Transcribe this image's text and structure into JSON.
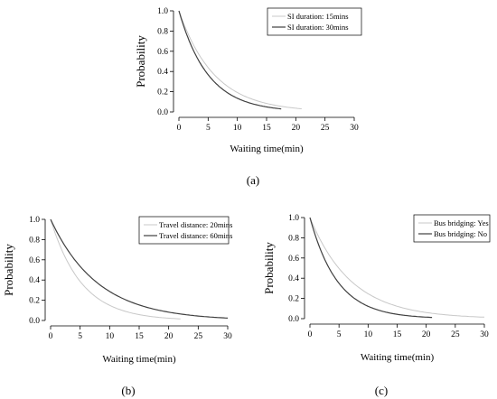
{
  "chart_data": [
    {
      "type": "line",
      "panel_label": "(a)",
      "xlabel": "Waiting time(min)",
      "ylabel": "Probability",
      "xlim": [
        0,
        30
      ],
      "ylim": [
        0,
        1
      ],
      "xticks": [
        0,
        5,
        10,
        15,
        20,
        25,
        30
      ],
      "yticks": [
        0.0,
        0.2,
        0.4,
        0.6,
        0.8,
        1.0
      ],
      "ytick_labels": [
        "0.0",
        "0.2",
        "0.4",
        "0.6",
        "0.8",
        "1.0"
      ],
      "legend_position": "top-right",
      "grid": false,
      "series": [
        {
          "name": "SI duration: 15mins",
          "color": "#c8c8c8",
          "rate": 0.165,
          "xmax": 21
        },
        {
          "name": "SI duration: 30mins",
          "color": "#404040",
          "rate": 0.2,
          "xmax": 17.5
        }
      ]
    },
    {
      "type": "line",
      "panel_label": "(b)",
      "xlabel": "Waiting time(min)",
      "ylabel": "Probability",
      "xlim": [
        0,
        30
      ],
      "ylim": [
        0,
        1
      ],
      "xticks": [
        0,
        5,
        10,
        15,
        20,
        25,
        30
      ],
      "yticks": [
        0.0,
        0.2,
        0.4,
        0.6,
        0.8,
        1.0
      ],
      "ytick_labels": [
        "0.0",
        "0.2",
        "0.4",
        "0.6",
        "0.8",
        "1.0"
      ],
      "legend_position": "top-right",
      "grid": false,
      "series": [
        {
          "name": "Travel distance: 20mins",
          "color": "#c8c8c8",
          "rate": 0.19,
          "xmax": 22
        },
        {
          "name": "Travel distance: 60mins",
          "color": "#404040",
          "rate": 0.125,
          "xmax": 30
        }
      ]
    },
    {
      "type": "line",
      "panel_label": "(c)",
      "xlabel": "Waiting time(min)",
      "ylabel": "Probability",
      "xlim": [
        0,
        30
      ],
      "ylim": [
        0,
        1
      ],
      "xticks": [
        0,
        5,
        10,
        15,
        20,
        25,
        30
      ],
      "yticks": [
        0.0,
        0.2,
        0.4,
        0.6,
        0.8,
        1.0
      ],
      "ytick_labels": [
        "0.0",
        "0.2",
        "0.4",
        "0.6",
        "0.8",
        "1.0"
      ],
      "legend_position": "top-right",
      "grid": false,
      "series": [
        {
          "name": "Bus bridging: Yes",
          "color": "#c8c8c8",
          "rate": 0.14,
          "xmax": 30
        },
        {
          "name": "Bus bridging: No",
          "color": "#404040",
          "rate": 0.21,
          "xmax": 21
        }
      ]
    }
  ]
}
